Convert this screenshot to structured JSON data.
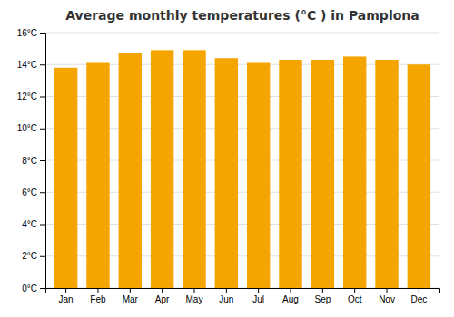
{
  "chart_data": {
    "type": "bar",
    "title": "Average monthly temperatures (°C ) in Pamplona",
    "categories": [
      "Jan",
      "Feb",
      "Mar",
      "Apr",
      "May",
      "Jun",
      "Jul",
      "Aug",
      "Sep",
      "Oct",
      "Nov",
      "Dec"
    ],
    "values": [
      13.8,
      14.1,
      14.7,
      14.9,
      14.9,
      14.4,
      14.1,
      14.3,
      14.3,
      14.5,
      14.3,
      14.0
    ],
    "color": "#F5A500",
    "ylim": [
      0,
      16
    ],
    "yticks": [
      {
        "value": 0,
        "label": "0°C"
      },
      {
        "value": 2,
        "label": "2°C"
      },
      {
        "value": 4,
        "label": "4°C"
      },
      {
        "value": 6,
        "label": "6°C"
      },
      {
        "value": 8,
        "label": "8°C"
      },
      {
        "value": 10,
        "label": "10°C"
      },
      {
        "value": 12,
        "label": "12°C"
      },
      {
        "value": 14,
        "label": "14°C"
      },
      {
        "value": 16,
        "label": "16°C"
      }
    ],
    "grid": true
  }
}
